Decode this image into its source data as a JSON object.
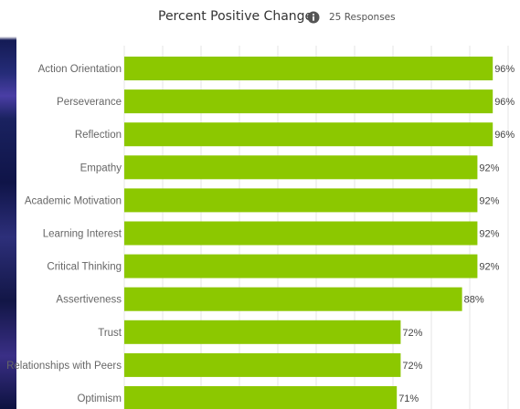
{
  "header": {
    "title": "Percent Positive Change",
    "info_icon": "info-icon",
    "responses": "25 Responses"
  },
  "colors": {
    "bar": "#8cc800",
    "grid": "#e6e6e6",
    "label": "#666666",
    "value": "#444444"
  },
  "chart_data": {
    "type": "bar",
    "orientation": "horizontal",
    "title": "Percent Positive Change",
    "subtitle": "25 Responses",
    "categories": [
      "Action Orientation",
      "Perseverance",
      "Reflection",
      "Empathy",
      "Academic Motivation",
      "Learning Interest",
      "Critical Thinking",
      "Assertiveness",
      "Trust",
      "Relationships with Peers",
      "Optimism"
    ],
    "values": [
      96,
      96,
      96,
      92,
      92,
      92,
      92,
      88,
      72,
      72,
      71
    ],
    "value_labels": [
      "96%",
      "96%",
      "96%",
      "92%",
      "92%",
      "92%",
      "92%",
      "88%",
      "72%",
      "72%",
      "71%"
    ],
    "xlim": [
      0,
      100
    ],
    "grid": true,
    "legend": "none"
  }
}
